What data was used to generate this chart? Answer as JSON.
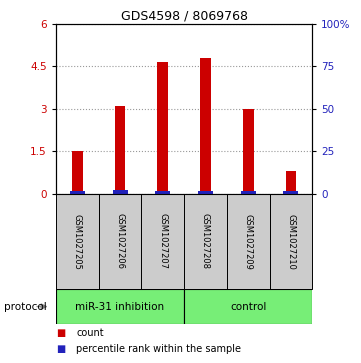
{
  "title": "GDS4598 / 8069768",
  "samples": [
    "GSM1027205",
    "GSM1027206",
    "GSM1027207",
    "GSM1027208",
    "GSM1027209",
    "GSM1027210"
  ],
  "count_values": [
    1.5,
    3.1,
    4.65,
    4.8,
    3.0,
    0.8
  ],
  "percentile_values": [
    0.09,
    0.12,
    0.09,
    0.11,
    0.1,
    0.08
  ],
  "left_ylim": [
    0,
    6
  ],
  "left_yticks": [
    0,
    1.5,
    3.0,
    4.5,
    6.0
  ],
  "left_yticklabels": [
    "0",
    "1.5",
    "3",
    "4.5",
    "6"
  ],
  "right_ylim": [
    0,
    100
  ],
  "right_yticks": [
    0,
    25,
    50,
    75,
    100
  ],
  "right_yticklabels": [
    "0",
    "25",
    "50",
    "75",
    "100%"
  ],
  "count_color": "#cc0000",
  "percentile_color": "#2222bb",
  "grid_color": "#999999",
  "group1_label": "miR-31 inhibition",
  "group2_label": "control",
  "group_color": "#77ee77",
  "sample_box_color": "#cccccc",
  "count_bar_width": 0.25,
  "pct_bar_width": 0.35,
  "legend_count_label": "count",
  "legend_pct_label": "percentile rank within the sample",
  "protocol_label": "protocol",
  "title_fontsize": 9,
  "label_fontsize": 6,
  "axis_fontsize": 7.5,
  "legend_fontsize": 7
}
